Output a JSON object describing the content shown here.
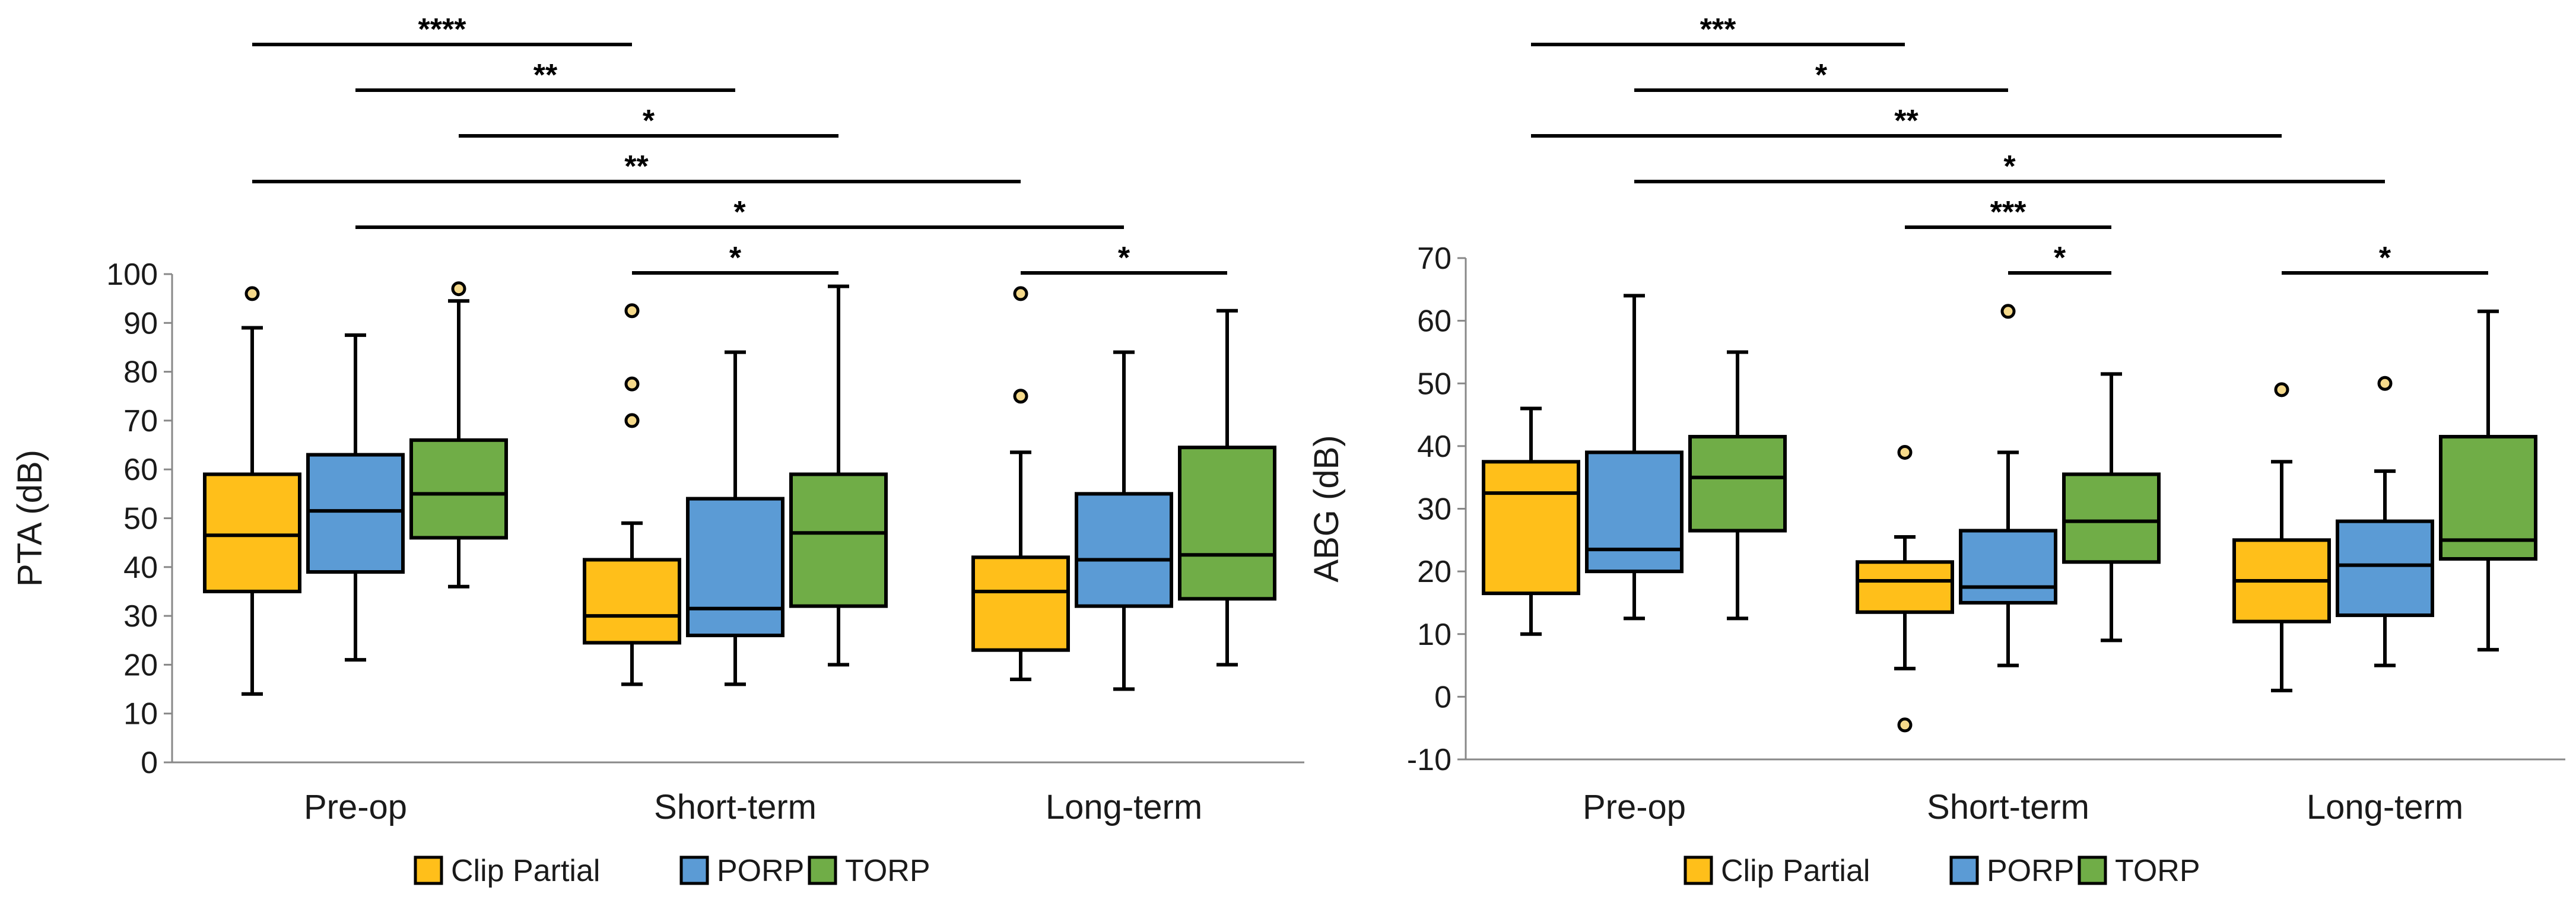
{
  "colors": {
    "clip": "#FFBF1A",
    "porp": "#5B9BD5",
    "torp": "#70AD47",
    "outlier": "#F5D98A"
  },
  "chart_data": [
    {
      "type": "box",
      "ylabel": "PTA (dB)",
      "ylim": [
        0,
        100
      ],
      "yticks": [
        0,
        10,
        20,
        30,
        40,
        50,
        60,
        70,
        80,
        90,
        100
      ],
      "categories": [
        "Pre-op",
        "Short-term",
        "Long-term"
      ],
      "legend": [
        "Clip Partial",
        "PORP",
        "TORP"
      ],
      "boxes": [
        {
          "group": 0,
          "series": 0,
          "min": 14,
          "q1": 35,
          "median": 46.5,
          "q3": 59,
          "max": 89,
          "outliers": [
            96
          ]
        },
        {
          "group": 0,
          "series": 1,
          "min": 21,
          "q1": 39,
          "median": 51.5,
          "q3": 63,
          "max": 87.5,
          "outliers": []
        },
        {
          "group": 0,
          "series": 2,
          "min": 36,
          "q1": 46,
          "median": 55,
          "q3": 66,
          "max": 94.5,
          "outliers": [
            97
          ]
        },
        {
          "group": 1,
          "series": 0,
          "min": 16,
          "q1": 24.5,
          "median": 30,
          "q3": 41.5,
          "max": 49,
          "outliers": [
            70,
            77.5,
            92.5
          ]
        },
        {
          "group": 1,
          "series": 1,
          "min": 16,
          "q1": 26,
          "median": 31.5,
          "q3": 54,
          "max": 84,
          "outliers": []
        },
        {
          "group": 1,
          "series": 2,
          "min": 20,
          "q1": 32,
          "median": 47,
          "q3": 59,
          "max": 97.5,
          "outliers": []
        },
        {
          "group": 2,
          "series": 0,
          "min": 17,
          "q1": 23,
          "median": 35,
          "q3": 42,
          "max": 63.5,
          "outliers": [
            75,
            96
          ]
        },
        {
          "group": 2,
          "series": 1,
          "min": 15,
          "q1": 32,
          "median": 41.5,
          "q3": 55,
          "max": 84,
          "outliers": []
        },
        {
          "group": 2,
          "series": 2,
          "min": 20,
          "q1": 33.5,
          "median": 42.5,
          "q3": 64.5,
          "max": 92.5,
          "outliers": []
        }
      ],
      "significance": [
        {
          "from": [
            0,
            0
          ],
          "to": [
            1,
            0
          ],
          "label": "****",
          "level": 0
        },
        {
          "from": [
            0,
            1
          ],
          "to": [
            1,
            1
          ],
          "label": "**",
          "level": 1
        },
        {
          "from": [
            0,
            2
          ],
          "to": [
            1,
            2
          ],
          "label": "*",
          "level": 2
        },
        {
          "from": [
            0,
            0
          ],
          "to": [
            2,
            0
          ],
          "label": "**",
          "level": 3
        },
        {
          "from": [
            0,
            1
          ],
          "to": [
            2,
            1
          ],
          "label": "*",
          "level": 4
        },
        {
          "from": [
            1,
            0
          ],
          "to": [
            1,
            2
          ],
          "label": "*",
          "level": 5
        },
        {
          "from": [
            2,
            0
          ],
          "to": [
            2,
            2
          ],
          "label": "*",
          "level": 5
        }
      ]
    },
    {
      "type": "box",
      "ylabel": "ABG (dB)",
      "ylim": [
        -10,
        70
      ],
      "yticks": [
        -10,
        0,
        10,
        20,
        30,
        40,
        50,
        60,
        70
      ],
      "categories": [
        "Pre-op",
        "Short-term",
        "Long-term"
      ],
      "legend": [
        "Clip Partial",
        "PORP",
        "TORP"
      ],
      "boxes": [
        {
          "group": 0,
          "series": 0,
          "min": 10,
          "q1": 16.5,
          "median": 32.5,
          "q3": 37.5,
          "max": 46,
          "outliers": []
        },
        {
          "group": 0,
          "series": 1,
          "min": 12.5,
          "q1": 20,
          "median": 23.5,
          "q3": 39,
          "max": 64,
          "outliers": []
        },
        {
          "group": 0,
          "series": 2,
          "min": 12.5,
          "q1": 26.5,
          "median": 35,
          "q3": 41.5,
          "max": 55,
          "outliers": []
        },
        {
          "group": 1,
          "series": 0,
          "min": 4.5,
          "q1": 13.5,
          "median": 18.5,
          "q3": 21.5,
          "max": 25.5,
          "outliers": [
            -4.5,
            39
          ]
        },
        {
          "group": 1,
          "series": 1,
          "min": 5,
          "q1": 15,
          "median": 17.5,
          "q3": 26.5,
          "max": 39,
          "outliers": [
            61.5
          ]
        },
        {
          "group": 1,
          "series": 2,
          "min": 9,
          "q1": 21.5,
          "median": 28,
          "q3": 35.5,
          "max": 51.5,
          "outliers": []
        },
        {
          "group": 2,
          "series": 0,
          "min": 1,
          "q1": 12,
          "median": 18.5,
          "q3": 25,
          "max": 37.5,
          "outliers": [
            49
          ]
        },
        {
          "group": 2,
          "series": 1,
          "min": 5,
          "q1": 13,
          "median": 21,
          "q3": 28,
          "max": 36,
          "outliers": [
            50
          ]
        },
        {
          "group": 2,
          "series": 2,
          "min": 7.5,
          "q1": 22,
          "median": 25,
          "q3": 41.5,
          "max": 61.5,
          "outliers": []
        }
      ],
      "significance": [
        {
          "from": [
            0,
            0
          ],
          "to": [
            1,
            0
          ],
          "label": "***",
          "level": 0
        },
        {
          "from": [
            0,
            1
          ],
          "to": [
            1,
            1
          ],
          "label": "*",
          "level": 1
        },
        {
          "from": [
            0,
            0
          ],
          "to": [
            2,
            0
          ],
          "label": "**",
          "level": 2
        },
        {
          "from": [
            0,
            1
          ],
          "to": [
            2,
            1
          ],
          "label": "*",
          "level": 3
        },
        {
          "from": [
            1,
            0
          ],
          "to": [
            1,
            2
          ],
          "label": "***",
          "level": 4
        },
        {
          "from": [
            1,
            1
          ],
          "to": [
            1,
            2
          ],
          "label": "*",
          "level": 5
        },
        {
          "from": [
            2,
            0
          ],
          "to": [
            2,
            2
          ],
          "label": "*",
          "level": 5
        }
      ]
    }
  ]
}
